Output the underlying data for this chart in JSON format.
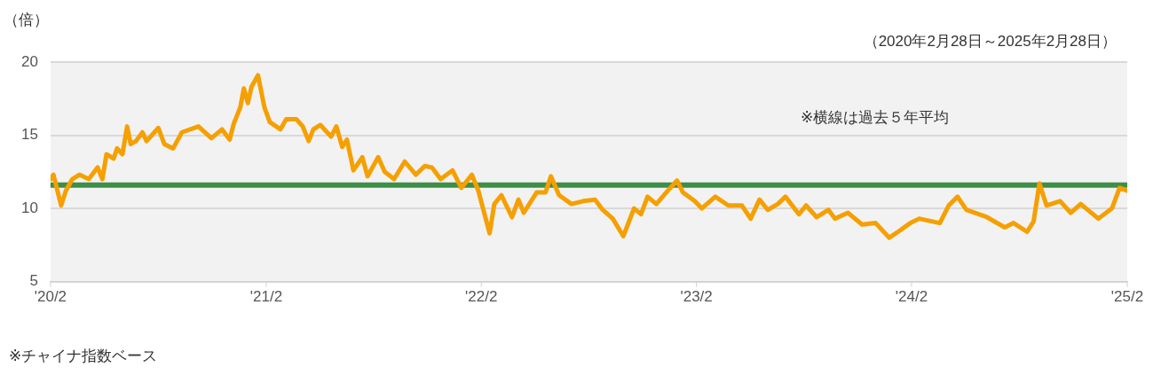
{
  "chart_data": {
    "type": "line",
    "ylabel": "（倍）",
    "subtitle": "（2020年2月28日～2025年2月28日）",
    "annotations": [
      "※横線は過去５年平均",
      "※チャイナ指数ベース"
    ],
    "x": [
      "2020-02-28",
      "2020-03-04",
      "2020-03-17",
      "2020-03-25",
      "2020-04-05",
      "2020-04-17",
      "2020-05-03",
      "2020-05-18",
      "2020-05-26",
      "2020-06-02",
      "2020-06-14",
      "2020-06-20",
      "2020-06-29",
      "2020-07-07",
      "2020-07-13",
      "2020-07-22",
      "2020-08-02",
      "2020-08-09",
      "2020-08-29",
      "2020-09-08",
      "2020-09-23",
      "2020-10-08",
      "2020-11-05",
      "2020-11-27",
      "2020-12-15",
      "2020-12-28",
      "2021-01-04",
      "2021-01-15",
      "2021-01-21",
      "2021-01-28",
      "2021-02-03",
      "2021-02-14",
      "2021-02-25",
      "2021-03-06",
      "2021-03-24",
      "2021-04-03",
      "2021-04-20",
      "2021-05-01",
      "2021-05-11",
      "2021-05-19",
      "2021-05-31",
      "2021-06-18",
      "2021-06-27",
      "2021-07-07",
      "2021-07-15",
      "2021-07-26",
      "2021-08-10",
      "2021-08-19",
      "2021-09-06",
      "2021-09-17",
      "2021-10-03",
      "2021-10-21",
      "2021-11-09",
      "2021-11-24",
      "2021-12-06",
      "2021-12-21",
      "2022-01-10",
      "2022-01-25",
      "2022-02-12",
      "2022-02-23",
      "2022-03-14",
      "2022-03-22",
      "2022-04-03",
      "2022-04-21",
      "2022-05-02",
      "2022-05-11",
      "2022-06-02",
      "2022-06-17",
      "2022-06-26",
      "2022-07-10",
      "2022-07-31",
      "2022-08-20",
      "2022-09-09",
      "2022-09-22",
      "2022-10-09",
      "2022-10-27",
      "2022-11-14",
      "2022-11-26",
      "2022-12-07",
      "2022-12-22",
      "2023-01-08",
      "2023-01-26",
      "2023-02-05",
      "2023-02-25",
      "2023-03-09",
      "2023-04-01",
      "2023-04-23",
      "2023-05-16",
      "2023-05-31",
      "2023-06-15",
      "2023-06-29",
      "2023-07-16",
      "2023-07-29",
      "2023-08-21",
      "2023-09-02",
      "2023-09-20",
      "2023-10-10",
      "2023-10-21",
      "2023-11-12",
      "2023-12-06",
      "2023-12-29",
      "2024-01-21",
      "2024-02-05",
      "2024-02-26",
      "2024-03-12",
      "2024-04-16",
      "2024-05-01",
      "2024-05-16",
      "2024-05-31",
      "2024-07-05",
      "2024-08-04",
      "2024-08-19",
      "2024-09-11",
      "2024-09-22",
      "2024-10-02",
      "2024-10-14",
      "2024-11-06",
      "2024-11-24",
      "2024-12-11",
      "2025-01-10",
      "2025-02-02",
      "2025-02-15",
      "2025-02-28"
    ],
    "series": [
      {
        "color": "#f5a000",
        "values": [
          12.0,
          12.3,
          10.2,
          11.2,
          12.0,
          12.3,
          12.0,
          12.8,
          12.0,
          13.7,
          13.4,
          14.1,
          13.7,
          15.6,
          14.4,
          14.6,
          15.2,
          14.6,
          15.5,
          14.4,
          14.1,
          15.2,
          15.6,
          14.8,
          15.4,
          14.7,
          15.8,
          16.9,
          18.2,
          17.2,
          18.3,
          19.1,
          16.9,
          15.9,
          15.4,
          16.1,
          16.1,
          15.6,
          14.6,
          15.4,
          15.7,
          14.9,
          15.6,
          14.2,
          14.7,
          12.6,
          13.5,
          12.2,
          13.5,
          12.5,
          12.0,
          13.2,
          12.3,
          12.9,
          12.8,
          12.0,
          12.6,
          11.4,
          12.3,
          11.2,
          8.3,
          10.3,
          10.9,
          9.4,
          10.6,
          9.7,
          11.1,
          11.1,
          12.2,
          10.9,
          10.3,
          10.5,
          10.6,
          9.9,
          9.3,
          8.1,
          10.0,
          9.6,
          10.8,
          10.3,
          11.1,
          11.9,
          11.1,
          10.5,
          10.0,
          10.8,
          10.2,
          10.2,
          9.3,
          10.6,
          9.9,
          10.3,
          10.8,
          9.6,
          10.2,
          9.4,
          9.9,
          9.3,
          9.7,
          8.9,
          9.0,
          8.0,
          8.4,
          9.0,
          9.3,
          9.0,
          10.2,
          10.8,
          9.9,
          9.4,
          8.7,
          9.0,
          8.4,
          9.1,
          11.7,
          10.2,
          10.5,
          9.7,
          10.3,
          9.3,
          10.0,
          11.4,
          11.2
        ]
      }
    ],
    "xlim": [
      "2020-02-28",
      "2025-02-28"
    ],
    "xticks": [
      {
        "value": "2020-02-28",
        "label": "'20/2"
      },
      {
        "value": "2021-02-28",
        "label": "'21/2"
      },
      {
        "value": "2022-02-28",
        "label": "'22/2"
      },
      {
        "value": "2023-02-28",
        "label": "'23/2"
      },
      {
        "value": "2024-02-28",
        "label": "'24/2"
      },
      {
        "value": "2025-02-28",
        "label": "'25/2"
      }
    ],
    "ylim": [
      5,
      20
    ],
    "yticks": [
      5,
      10,
      15,
      20
    ],
    "ref_lines": [
      {
        "axis": "y",
        "value": 11.6,
        "color": "#3d8f47"
      }
    ],
    "grid": "y",
    "legend": false,
    "marker": "none",
    "line_style": "solid"
  }
}
